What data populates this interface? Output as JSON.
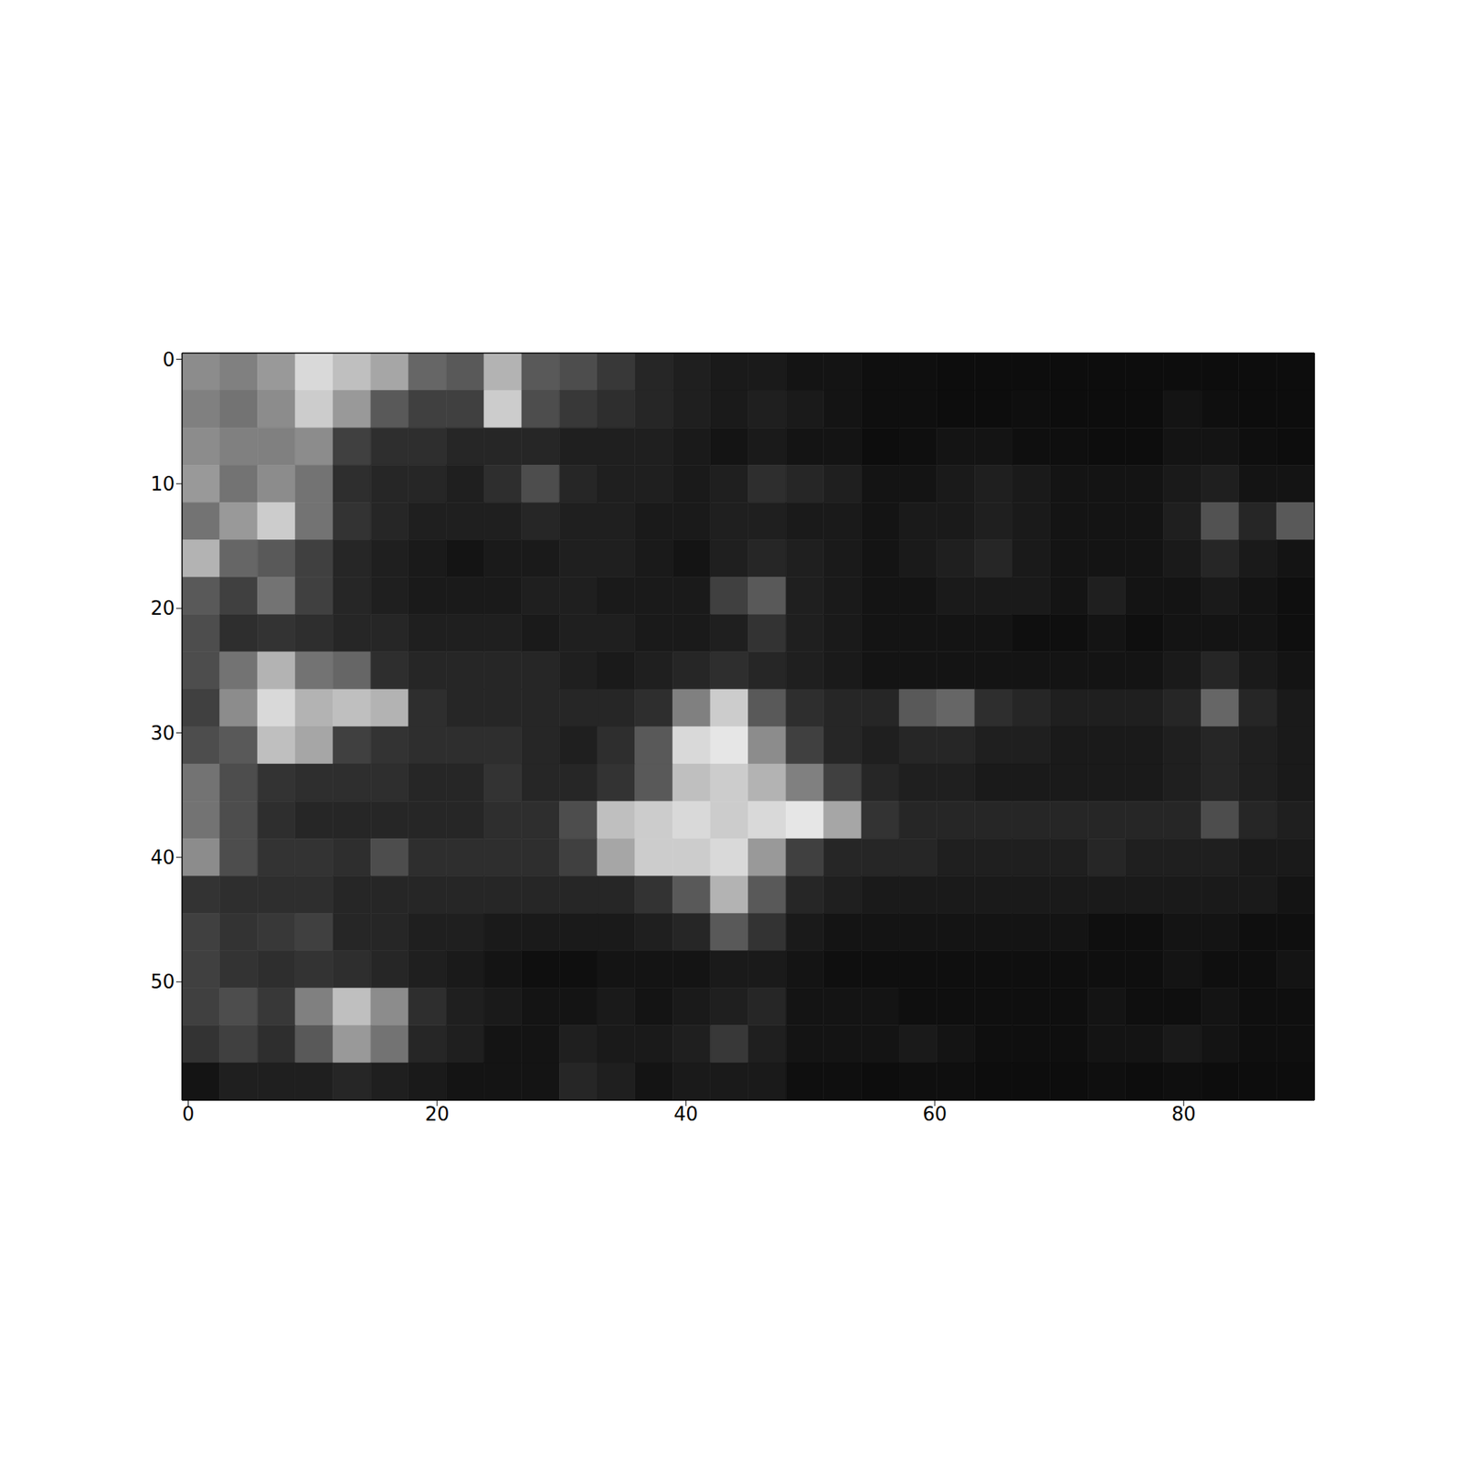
{
  "chart_data": {
    "type": "heatmap",
    "color": "gray",
    "xlim": [
      -0.5,
      90.5
    ],
    "ylim": [
      -0.5,
      59.5
    ],
    "xticks": [
      0,
      20,
      40,
      60,
      80
    ],
    "yticks": [
      0,
      10,
      20,
      30,
      40,
      50
    ],
    "zlim": [
      0,
      100
    ],
    "z": [
      [
        55,
        50,
        60,
        85,
        75,
        65,
        40,
        35,
        70,
        35,
        30,
        22,
        15,
        12,
        10,
        10,
        8,
        8,
        6,
        6,
        5,
        5,
        5,
        5,
        5,
        5,
        5,
        5,
        5,
        5
      ],
      [
        50,
        45,
        55,
        80,
        60,
        35,
        25,
        25,
        80,
        30,
        22,
        18,
        15,
        12,
        10,
        12,
        10,
        8,
        6,
        6,
        5,
        5,
        6,
        5,
        5,
        5,
        8,
        6,
        5,
        5
      ],
      [
        55,
        50,
        50,
        55,
        25,
        18,
        18,
        15,
        15,
        15,
        12,
        12,
        12,
        10,
        8,
        10,
        8,
        8,
        5,
        6,
        8,
        8,
        6,
        6,
        5,
        5,
        8,
        8,
        6,
        5
      ],
      [
        60,
        45,
        55,
        45,
        18,
        15,
        15,
        12,
        18,
        30,
        15,
        12,
        12,
        10,
        12,
        18,
        15,
        12,
        8,
        8,
        10,
        12,
        10,
        8,
        8,
        8,
        10,
        12,
        8,
        8
      ],
      [
        45,
        60,
        80,
        45,
        20,
        15,
        12,
        12,
        12,
        15,
        12,
        12,
        10,
        10,
        12,
        12,
        10,
        10,
        8,
        10,
        10,
        12,
        10,
        8,
        8,
        8,
        12,
        32,
        15,
        35
      ],
      [
        70,
        40,
        35,
        25,
        15,
        12,
        10,
        8,
        10,
        10,
        12,
        12,
        10,
        8,
        12,
        15,
        12,
        10,
        8,
        10,
        12,
        15,
        10,
        8,
        8,
        8,
        10,
        15,
        10,
        8
      ],
      [
        35,
        25,
        45,
        25,
        15,
        12,
        10,
        10,
        10,
        12,
        12,
        10,
        10,
        10,
        25,
        35,
        12,
        10,
        8,
        8,
        10,
        10,
        10,
        8,
        12,
        8,
        8,
        10,
        8,
        6
      ],
      [
        30,
        18,
        20,
        18,
        15,
        15,
        12,
        12,
        12,
        10,
        12,
        12,
        10,
        10,
        12,
        20,
        12,
        10,
        8,
        8,
        8,
        8,
        6,
        6,
        8,
        6,
        8,
        8,
        8,
        6
      ],
      [
        30,
        45,
        70,
        45,
        40,
        18,
        15,
        15,
        15,
        15,
        12,
        10,
        12,
        15,
        18,
        15,
        12,
        10,
        8,
        8,
        8,
        8,
        8,
        8,
        8,
        8,
        10,
        15,
        10,
        8
      ],
      [
        25,
        55,
        85,
        70,
        75,
        70,
        18,
        15,
        15,
        15,
        15,
        15,
        18,
        50,
        80,
        35,
        18,
        15,
        15,
        35,
        40,
        18,
        15,
        12,
        12,
        12,
        15,
        40,
        15,
        10
      ],
      [
        30,
        35,
        75,
        65,
        25,
        20,
        18,
        18,
        18,
        15,
        12,
        18,
        35,
        85,
        90,
        55,
        25,
        15,
        12,
        15,
        15,
        12,
        12,
        10,
        10,
        10,
        12,
        15,
        12,
        10
      ],
      [
        45,
        30,
        20,
        18,
        18,
        18,
        15,
        15,
        20,
        15,
        15,
        20,
        35,
        75,
        80,
        70,
        50,
        25,
        15,
        12,
        12,
        10,
        10,
        10,
        10,
        10,
        12,
        15,
        12,
        10
      ],
      [
        45,
        30,
        18,
        15,
        15,
        15,
        15,
        15,
        18,
        18,
        30,
        75,
        80,
        85,
        80,
        85,
        90,
        65,
        20,
        15,
        15,
        15,
        15,
        15,
        15,
        15,
        15,
        30,
        15,
        12
      ],
      [
        55,
        30,
        20,
        20,
        18,
        30,
        18,
        18,
        18,
        18,
        25,
        65,
        80,
        80,
        85,
        60,
        25,
        15,
        15,
        15,
        12,
        12,
        12,
        12,
        15,
        12,
        12,
        12,
        10,
        10
      ],
      [
        20,
        18,
        18,
        18,
        15,
        15,
        15,
        15,
        15,
        15,
        15,
        15,
        20,
        35,
        70,
        35,
        15,
        12,
        10,
        10,
        10,
        10,
        10,
        10,
        10,
        10,
        10,
        10,
        10,
        8
      ],
      [
        25,
        20,
        22,
        25,
        15,
        15,
        12,
        12,
        10,
        10,
        10,
        10,
        12,
        15,
        35,
        20,
        10,
        8,
        8,
        8,
        8,
        8,
        8,
        8,
        6,
        6,
        8,
        8,
        6,
        6
      ],
      [
        25,
        20,
        18,
        20,
        18,
        15,
        12,
        10,
        8,
        6,
        6,
        8,
        8,
        8,
        10,
        10,
        8,
        6,
        6,
        6,
        6,
        6,
        6,
        6,
        6,
        6,
        8,
        6,
        6,
        8
      ],
      [
        25,
        30,
        22,
        50,
        75,
        55,
        18,
        12,
        10,
        8,
        8,
        10,
        8,
        10,
        12,
        15,
        8,
        8,
        8,
        6,
        6,
        6,
        6,
        6,
        8,
        6,
        6,
        8,
        6,
        6
      ],
      [
        20,
        25,
        18,
        35,
        60,
        45,
        15,
        12,
        8,
        8,
        12,
        10,
        10,
        12,
        22,
        12,
        8,
        8,
        8,
        10,
        8,
        6,
        6,
        6,
        8,
        8,
        10,
        8,
        6,
        6
      ],
      [
        8,
        12,
        12,
        12,
        15,
        12,
        10,
        8,
        8,
        8,
        15,
        12,
        8,
        10,
        10,
        10,
        6,
        6,
        5,
        6,
        6,
        5,
        5,
        5,
        6,
        5,
        6,
        5,
        5,
        5
      ]
    ]
  }
}
